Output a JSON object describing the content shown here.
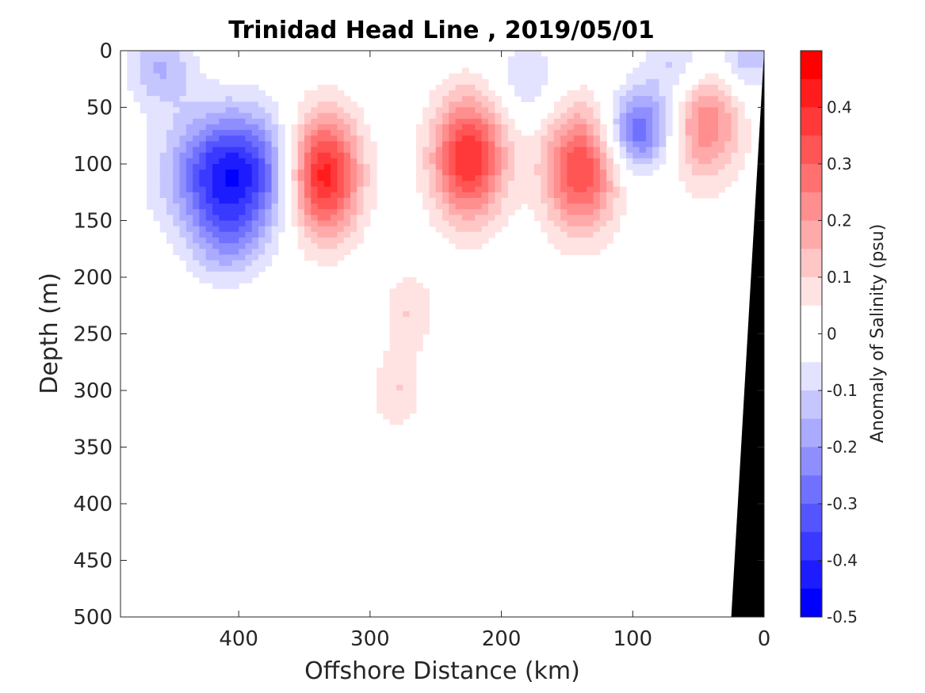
{
  "chart_data": {
    "type": "heatmap",
    "title": "Trinidad Head Line , 2019/05/01",
    "xlabel": "Offshore Distance (km)",
    "ylabel": "Depth (m)",
    "colorbar_label": "Anomaly of Salinity (psu)",
    "xlim": [
      490,
      0
    ],
    "ylim": [
      0,
      500
    ],
    "x_reversed": true,
    "y_reversed": true,
    "x_ticks": [
      "400",
      "300",
      "200",
      "100",
      "0"
    ],
    "x_tick_values": [
      400,
      300,
      200,
      100,
      0
    ],
    "y_ticks": [
      "0",
      "50",
      "100",
      "150",
      "200",
      "250",
      "300",
      "350",
      "400",
      "450",
      "500"
    ],
    "y_tick_values": [
      0,
      50,
      100,
      150,
      200,
      250,
      300,
      350,
      400,
      450,
      500
    ],
    "colorbar_ticks": [
      "0.4",
      "0.3",
      "0.2",
      "0.1",
      "0",
      "-0.1",
      "-0.2",
      "-0.3",
      "-0.4",
      "-0.5"
    ],
    "colorbar_tick_values": [
      0.4,
      0.3,
      0.2,
      0.1,
      0,
      -0.1,
      -0.2,
      -0.3,
      -0.4,
      -0.5
    ],
    "colorbar_range": [
      -0.5,
      0.5
    ],
    "contour_levels": [
      -0.45,
      -0.4,
      -0.35,
      -0.3,
      -0.25,
      -0.2,
      -0.15,
      -0.1,
      -0.05,
      0.05,
      0.1,
      0.15,
      0.2,
      0.25,
      0.3,
      0.35,
      0.4,
      0.45
    ],
    "zero_contour": true,
    "colormap": {
      "negative": "#0000ff",
      "zero": "#ffffff",
      "positive": "#ff0000"
    },
    "bathymetry_color": "#000000",
    "features": [
      {
        "kind": "min",
        "x": 405,
        "depth": 110,
        "value": -0.45
      },
      {
        "kind": "min",
        "x": 460,
        "depth": 15,
        "value": -0.15
      },
      {
        "kind": "min",
        "x": 410,
        "depth": 170,
        "value": -0.12
      },
      {
        "kind": "min",
        "x": 180,
        "depth": 25,
        "value": -0.1
      },
      {
        "kind": "min",
        "x": 95,
        "depth": 70,
        "value": -0.3
      },
      {
        "kind": "min",
        "x": 65,
        "depth": 15,
        "value": -0.15
      },
      {
        "kind": "min",
        "x": 15,
        "depth": 5,
        "value": -0.15
      },
      {
        "kind": "max",
        "x": 336,
        "depth": 110,
        "value": 0.45
      },
      {
        "kind": "max",
        "x": 225,
        "depth": 95,
        "value": 0.4
      },
      {
        "kind": "max",
        "x": 140,
        "depth": 105,
        "value": 0.35
      },
      {
        "kind": "max",
        "x": 45,
        "depth": 60,
        "value": 0.25
      },
      {
        "kind": "max",
        "x": 270,
        "depth": 230,
        "value": 0.1
      },
      {
        "kind": "max",
        "x": 280,
        "depth": 300,
        "value": 0.1
      }
    ],
    "bathymetry": [
      [
        0,
        0
      ],
      [
        0,
        500
      ],
      [
        25,
        500
      ]
    ]
  }
}
